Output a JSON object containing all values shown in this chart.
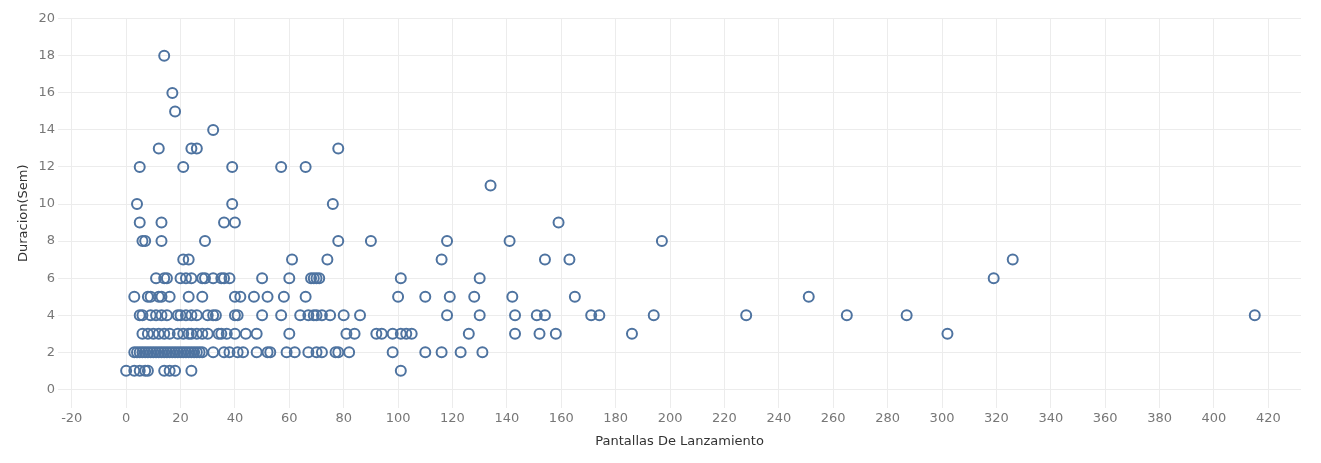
{
  "chart_data": {
    "type": "scatter",
    "xlabel": "Pantallas De Lanzamiento",
    "ylabel": "Duracion(Sem)",
    "color": "#4e73a0",
    "marker": "circle",
    "grid": true,
    "xlim": [
      -25,
      432
    ],
    "xticks": [
      -20,
      0,
      20,
      40,
      60,
      80,
      100,
      120,
      140,
      160,
      180,
      200,
      220,
      240,
      260,
      280,
      300,
      320,
      340,
      360,
      380,
      400,
      420
    ],
    "ylim": [
      -1,
      20
    ],
    "yticks": [
      0,
      2,
      4,
      6,
      8,
      10,
      12,
      14,
      16,
      18,
      20
    ],
    "x": [
      14,
      17,
      18,
      32,
      12,
      24,
      26,
      78,
      5,
      21,
      39,
      57,
      66,
      134,
      4,
      39,
      76,
      5,
      13,
      36,
      40,
      159,
      6,
      7,
      13,
      29,
      78,
      90,
      118,
      141,
      197,
      21,
      23,
      61,
      74,
      116,
      154,
      163,
      326,
      11,
      14,
      15,
      20,
      22,
      24,
      28,
      29,
      32,
      35,
      36,
      38,
      50,
      60,
      68,
      69,
      70,
      71,
      101,
      130,
      319,
      3,
      8,
      9,
      12,
      13,
      16,
      23,
      28,
      40,
      42,
      47,
      52,
      58,
      66,
      100,
      110,
      119,
      128,
      142,
      165,
      251,
      5,
      6,
      9,
      11,
      13,
      15,
      19,
      20,
      22,
      24,
      26,
      30,
      32,
      33,
      40,
      41,
      50,
      57,
      64,
      67,
      69,
      70,
      72,
      75,
      80,
      86,
      118,
      130,
      143,
      151,
      154,
      171,
      174,
      194,
      228,
      265,
      287,
      415,
      6,
      8,
      10,
      12,
      14,
      16,
      19,
      21,
      23,
      24,
      26,
      28,
      30,
      34,
      35,
      37,
      40,
      44,
      48,
      60,
      81,
      84,
      92,
      94,
      98,
      101,
      103,
      105,
      126,
      143,
      152,
      158,
      186,
      302,
      3,
      4,
      5,
      6,
      7,
      8,
      9,
      10,
      11,
      12,
      13,
      14,
      15,
      16,
      17,
      18,
      19,
      20,
      21,
      22,
      23,
      24,
      25,
      26,
      27,
      28,
      32,
      36,
      38,
      41,
      43,
      48,
      52,
      53,
      59,
      62,
      67,
      70,
      72,
      77,
      78,
      82,
      98,
      110,
      116,
      123,
      131,
      0,
      3,
      5,
      7,
      8,
      14,
      16,
      18,
      24,
      101
    ],
    "values": [
      18,
      16,
      15,
      14,
      13,
      13,
      13,
      13,
      12,
      12,
      12,
      12,
      12,
      11,
      10,
      10,
      10,
      9,
      9,
      9,
      9,
      9,
      8,
      8,
      8,
      8,
      8,
      8,
      8,
      8,
      8,
      7,
      7,
      7,
      7,
      7,
      7,
      7,
      7,
      6,
      6,
      6,
      6,
      6,
      6,
      6,
      6,
      6,
      6,
      6,
      6,
      6,
      6,
      6,
      6,
      6,
      6,
      6,
      6,
      6,
      5,
      5,
      5,
      5,
      5,
      5,
      5,
      5,
      5,
      5,
      5,
      5,
      5,
      5,
      5,
      5,
      5,
      5,
      5,
      5,
      5,
      4,
      4,
      4,
      4,
      4,
      4,
      4,
      4,
      4,
      4,
      4,
      4,
      4,
      4,
      4,
      4,
      4,
      4,
      4,
      4,
      4,
      4,
      4,
      4,
      4,
      4,
      4,
      4,
      4,
      4,
      4,
      4,
      4,
      4,
      4,
      4,
      4,
      4,
      3,
      3,
      3,
      3,
      3,
      3,
      3,
      3,
      3,
      3,
      3,
      3,
      3,
      3,
      3,
      3,
      3,
      3,
      3,
      3,
      3,
      3,
      3,
      3,
      3,
      3,
      3,
      3,
      3,
      3,
      3,
      3,
      3,
      3,
      2,
      2,
      2,
      2,
      2,
      2,
      2,
      2,
      2,
      2,
      2,
      2,
      2,
      2,
      2,
      2,
      2,
      2,
      2,
      2,
      2,
      2,
      2,
      2,
      2,
      2,
      2,
      2,
      2,
      2,
      2,
      2,
      2,
      2,
      2,
      2,
      2,
      2,
      2,
      2,
      2,
      2,
      2,
      2,
      2,
      2,
      2,
      1,
      1,
      1,
      1,
      1,
      1,
      1,
      1,
      1,
      1
    ]
  }
}
